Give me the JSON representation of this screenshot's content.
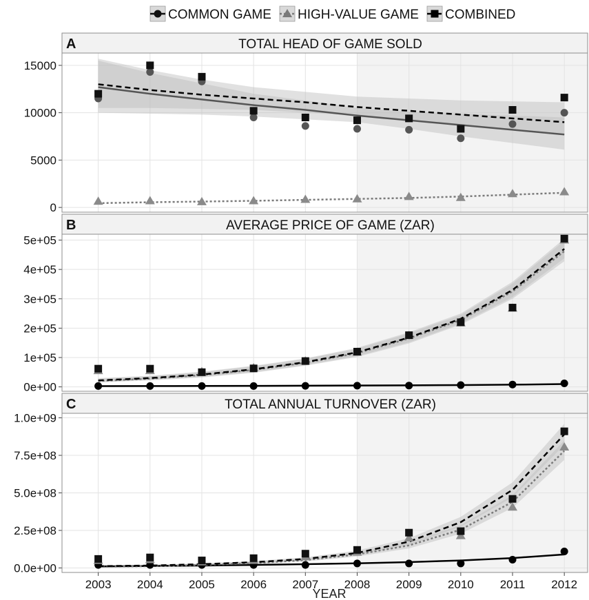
{
  "legend": {
    "items": [
      {
        "label": "COMMON GAME",
        "marker": "circle",
        "line": "solid",
        "color": "#111111"
      },
      {
        "label": "HIGH-VALUE GAME",
        "marker": "triangle",
        "line": "dotted",
        "color": "#7a7a7a"
      },
      {
        "label": "COMBINED",
        "marker": "square",
        "line": "dashed",
        "color": "#000000"
      }
    ],
    "placement": "top-center"
  },
  "xlabel": "YEAR",
  "highlight_start_year": 2008,
  "chart_data": [
    {
      "type": "scatter",
      "panel_letter": "A",
      "title": "TOTAL HEAD OF GAME SOLD",
      "x": [
        2003,
        2004,
        2005,
        2006,
        2007,
        2008,
        2009,
        2010,
        2011,
        2012
      ],
      "ylim": [
        -500,
        16300
      ],
      "yticks": [
        0,
        5000,
        10000,
        15000
      ],
      "ytick_labels": [
        "0",
        "5000",
        "10000",
        "15000"
      ],
      "series": [
        {
          "name": "COMMON GAME",
          "values": [
            11500,
            14300,
            13300,
            9500,
            8600,
            8300,
            8200,
            7300,
            8800,
            10000
          ],
          "fit": [
            12700,
            12000,
            11400,
            10800,
            10300,
            9700,
            9200,
            8700,
            8200,
            7700
          ],
          "band_lo": [
            10000,
            9900,
            9800,
            9600,
            9300,
            9000,
            8300,
            7500,
            6800,
            6100
          ],
          "band_hi": [
            15500,
            14200,
            13100,
            12000,
            11300,
            10500,
            10100,
            9900,
            9700,
            9500
          ]
        },
        {
          "name": "HIGH-VALUE GAME",
          "values": [
            650,
            700,
            600,
            700,
            850,
            900,
            1150,
            1050,
            1450,
            1650
          ],
          "fit": [
            450,
            550,
            620,
            700,
            800,
            900,
            1000,
            1150,
            1350,
            1550
          ]
        },
        {
          "name": "COMBINED",
          "values": [
            12000,
            15000,
            13800,
            10200,
            9500,
            9200,
            9400,
            8300,
            10300,
            11600
          ],
          "fit": [
            13000,
            12400,
            11900,
            11500,
            11100,
            10600,
            10200,
            9800,
            9400,
            9000
          ],
          "band_lo": [
            10500,
            10500,
            10400,
            10300,
            10000,
            9700,
            9200,
            8700,
            8300,
            7800
          ],
          "band_hi": [
            15700,
            14500,
            13500,
            12700,
            12200,
            11700,
            11500,
            11300,
            11200,
            11100
          ]
        }
      ]
    },
    {
      "type": "scatter",
      "panel_letter": "B",
      "title": "AVERAGE PRICE OF GAME (ZAR)",
      "x": [
        2003,
        2004,
        2005,
        2006,
        2007,
        2008,
        2009,
        2010,
        2011,
        2012
      ],
      "ylim": [
        -15000,
        520000
      ],
      "yticks": [
        0,
        100000,
        200000,
        300000,
        400000,
        500000
      ],
      "ytick_labels": [
        "0e+00",
        "1e+05",
        "2e+05",
        "3e+05",
        "4e+05",
        "5e+05"
      ],
      "series": [
        {
          "name": "COMMON GAME",
          "values": [
            3000,
            3000,
            3000,
            3000,
            3500,
            4000,
            4500,
            6000,
            8000,
            12000
          ],
          "fit": [
            2500,
            2800,
            3100,
            3500,
            4000,
            4600,
            5300,
            6200,
            7500,
            9500
          ]
        },
        {
          "name": "HIGH-VALUE GAME",
          "values": [
            55000,
            55000,
            52000,
            65000,
            88000,
            118000,
            175000,
            218000,
            268000,
            500000
          ],
          "fit": [
            20000,
            28000,
            40000,
            58000,
            82000,
            115000,
            165000,
            228000,
            325000,
            462000
          ],
          "band_lo": [
            15000,
            22000,
            32000,
            48000,
            72000,
            102000,
            148000,
            212000,
            300000,
            428000
          ],
          "band_hi": [
            28000,
            36000,
            50000,
            70000,
            95000,
            130000,
            182000,
            245000,
            352000,
            498000
          ]
        },
        {
          "name": "COMBINED",
          "values": [
            62000,
            62000,
            50000,
            63000,
            88000,
            120000,
            176000,
            220000,
            270000,
            505000
          ],
          "fit": [
            22000,
            30000,
            42000,
            60000,
            84000,
            118000,
            168000,
            232000,
            330000,
            470000
          ],
          "band_lo": [
            16000,
            24000,
            34000,
            50000,
            74000,
            105000,
            152000,
            216000,
            306000,
            438000
          ],
          "band_hi": [
            30000,
            38000,
            52000,
            72000,
            97000,
            133000,
            186000,
            250000,
            358000,
            505000
          ]
        }
      ]
    },
    {
      "type": "scatter",
      "panel_letter": "C",
      "title": "TOTAL ANNUAL TURNOVER (ZAR)",
      "x": [
        2003,
        2004,
        2005,
        2006,
        2007,
        2008,
        2009,
        2010,
        2011,
        2012
      ],
      "ylim": [
        -30000000,
        1030000000
      ],
      "yticks": [
        0,
        250000000,
        500000000,
        750000000,
        1000000000
      ],
      "ytick_labels": [
        "0.0e+00",
        "2.5e+08",
        "5.0e+08",
        "7.5e+08",
        "1.0e+09"
      ],
      "series": [
        {
          "name": "COMMON GAME",
          "values": [
            20000000,
            20000000,
            20000000,
            20000000,
            20000000,
            30000000,
            30000000,
            30000000,
            55000000,
            110000000
          ],
          "fit": [
            10000000,
            13000000,
            16000000,
            20000000,
            25000000,
            31000000,
            39000000,
            50000000,
            66000000,
            90000000
          ]
        },
        {
          "name": "HIGH-VALUE GAME",
          "values": [
            50000000,
            55000000,
            40000000,
            50000000,
            75000000,
            105000000,
            200000000,
            215000000,
            405000000,
            805000000
          ],
          "fit": [
            8000000,
            12000000,
            20000000,
            32000000,
            52000000,
            90000000,
            150000000,
            255000000,
            440000000,
            780000000
          ],
          "band_lo": [
            5000000,
            8000000,
            14000000,
            24000000,
            42000000,
            76000000,
            130000000,
            228000000,
            400000000,
            720000000
          ],
          "band_hi": [
            12000000,
            17000000,
            27000000,
            42000000,
            64000000,
            106000000,
            172000000,
            285000000,
            485000000,
            850000000
          ]
        },
        {
          "name": "COMBINED",
          "values": [
            60000000,
            70000000,
            50000000,
            65000000,
            95000000,
            120000000,
            235000000,
            245000000,
            460000000,
            910000000
          ],
          "fit": [
            12000000,
            16000000,
            25000000,
            38000000,
            60000000,
            100000000,
            175000000,
            305000000,
            520000000,
            890000000
          ],
          "band_lo": [
            8000000,
            12000000,
            19000000,
            30000000,
            50000000,
            85000000,
            152000000,
            275000000,
            470000000,
            820000000
          ],
          "band_hi": [
            16000000,
            21000000,
            31000000,
            46000000,
            71000000,
            116000000,
            198000000,
            340000000,
            570000000,
            960000000
          ]
        }
      ]
    }
  ]
}
